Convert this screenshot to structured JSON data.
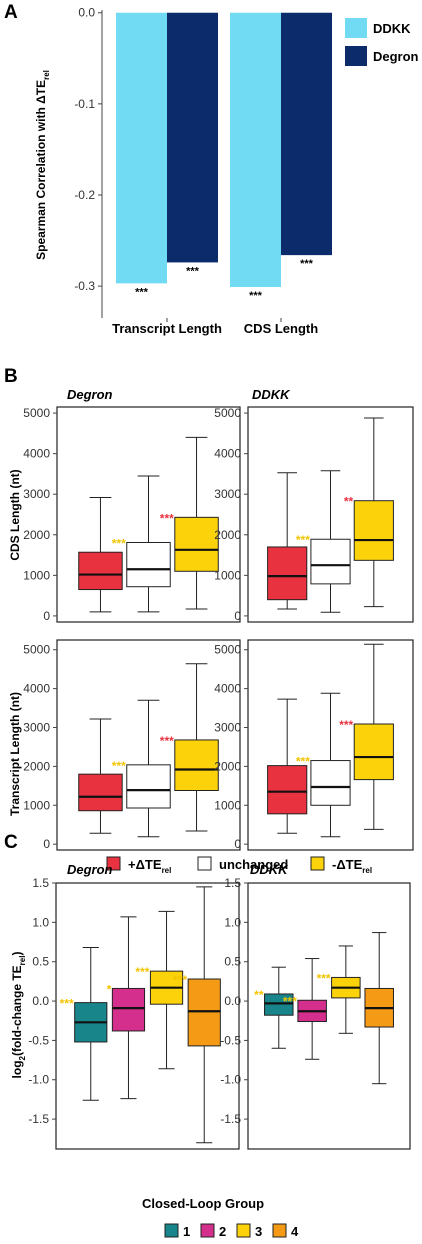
{
  "panels": {
    "a": "A",
    "b": "B",
    "c": "C"
  },
  "chart_data": [
    {
      "id": "A",
      "type": "bar",
      "ylabel": "Spearman Correlation with ΔTE",
      "ylabel_sub": "rel",
      "categories": [
        "Transcript Length",
        "CDS Length"
      ],
      "series": [
        {
          "name": "DDKK",
          "color": "#72dbf4",
          "values": [
            -0.297,
            -0.301
          ],
          "sig": [
            "***",
            "***"
          ]
        },
        {
          "name": "Degron",
          "color": "#0b2b6b",
          "values": [
            -0.274,
            -0.266
          ],
          "sig": [
            "***",
            "***"
          ]
        }
      ],
      "ylim": [
        -0.335,
        0.003
      ],
      "yticks": [
        "0.0",
        "-0.1",
        "-0.2",
        "-0.3"
      ],
      "ytick_values": [
        0,
        -0.1,
        -0.2,
        -0.3
      ],
      "legend_position": "top-right"
    },
    {
      "id": "B",
      "type": "boxplot",
      "rows": [
        {
          "ylabel": "CDS Length (nt)",
          "ylim": [
            -150,
            5150
          ],
          "yticks": [
            "0",
            "1000",
            "2000",
            "3000",
            "4000",
            "5000"
          ],
          "ytick_values": [
            0,
            1000,
            2000,
            3000,
            4000,
            5000
          ]
        },
        {
          "ylabel": "Transcript Length (nt)",
          "ylim": [
            -150,
            5250
          ],
          "yticks": [
            "0",
            "1000",
            "2000",
            "3000",
            "4000",
            "5000"
          ],
          "ytick_values": [
            0,
            1000,
            2000,
            3000,
            4000,
            5000
          ]
        }
      ],
      "columns": [
        "Degron",
        "DDKK"
      ],
      "categories": [
        "+ΔTE_rel",
        "unchanged",
        "-ΔTE_rel"
      ],
      "colors": [
        "#e8323f",
        "#ffffff",
        "#fcd20a"
      ],
      "boxes": [
        [
          [
            {
              "min": 100,
              "q1": 650,
              "median": 1020,
              "q3": 1570,
              "max": 2920,
              "sig": ""
            },
            {
              "min": 100,
              "q1": 720,
              "median": 1150,
              "q3": 1810,
              "max": 3450,
              "sig": "***",
              "sig_color": "#f2c400"
            },
            {
              "min": 170,
              "q1": 1100,
              "median": 1630,
              "q3": 2430,
              "max": 4400,
              "sig": "***",
              "sig_color": "#e8323f"
            }
          ],
          [
            {
              "min": 170,
              "q1": 400,
              "median": 980,
              "q3": 1700,
              "max": 3530,
              "sig": ""
            },
            {
              "min": 90,
              "q1": 790,
              "median": 1250,
              "q3": 1890,
              "max": 3580,
              "sig": "***",
              "sig_color": "#f2c400"
            },
            {
              "min": 230,
              "q1": 1370,
              "median": 1870,
              "q3": 2840,
              "max": 4880,
              "sig": "**",
              "sig_color": "#e8323f"
            }
          ]
        ],
        [
          [
            {
              "min": 280,
              "q1": 860,
              "median": 1220,
              "q3": 1800,
              "max": 3220,
              "sig": ""
            },
            {
              "min": 190,
              "q1": 930,
              "median": 1390,
              "q3": 2040,
              "max": 3700,
              "sig": "***",
              "sig_color": "#f2c400"
            },
            {
              "min": 340,
              "q1": 1380,
              "median": 1920,
              "q3": 2680,
              "max": 4640,
              "sig": "***",
              "sig_color": "#e8323f"
            }
          ],
          [
            {
              "min": 280,
              "q1": 780,
              "median": 1350,
              "q3": 2020,
              "max": 3730,
              "sig": ""
            },
            {
              "min": 190,
              "q1": 1000,
              "median": 1470,
              "q3": 2150,
              "max": 3880,
              "sig": "***",
              "sig_color": "#f2c400"
            },
            {
              "min": 380,
              "q1": 1660,
              "median": 2240,
              "q3": 3090,
              "max": 5140,
              "sig": "***",
              "sig_color": "#e8323f"
            }
          ]
        ]
      ],
      "legend": [
        "+ΔTE",
        "unchanged",
        "-ΔTE"
      ],
      "legend_sub": [
        "rel",
        "",
        "rel"
      ]
    },
    {
      "id": "C",
      "type": "boxplot",
      "ylabel": "log",
      "ylabel_sub": "2",
      "ylabel_rest": "(fold-change TE",
      "ylabel_sub2": "rel",
      "ylabel_end": ")",
      "columns": [
        "Degron",
        "DDKK"
      ],
      "ylim": [
        -1.88,
        1.5
      ],
      "yticks": [
        "1.5",
        "1.0",
        "0.5",
        "0.0",
        "-0.5",
        "-1.0",
        "-1.5"
      ],
      "ytick_values": [
        1.5,
        1.0,
        0.5,
        0.0,
        -0.5,
        -1.0,
        -1.5
      ],
      "categories": [
        "1",
        "2",
        "3",
        "4"
      ],
      "colors": [
        "#17858a",
        "#d42f8c",
        "#fcd20a",
        "#f49a14"
      ],
      "boxes": [
        [
          {
            "min": -1.26,
            "q1": -0.52,
            "median": -0.27,
            "q3": -0.02,
            "max": 0.68,
            "sig": "***"
          },
          {
            "min": -1.24,
            "q1": -0.38,
            "median": -0.09,
            "q3": 0.16,
            "max": 1.07,
            "sig": "*"
          },
          {
            "min": -0.86,
            "q1": -0.04,
            "median": 0.17,
            "q3": 0.38,
            "max": 1.14,
            "sig": "***"
          },
          {
            "min": -1.8,
            "q1": -0.57,
            "median": -0.13,
            "q3": 0.28,
            "max": 1.45,
            "sig": "***"
          }
        ],
        [
          {
            "min": -0.6,
            "q1": -0.18,
            "median": -0.03,
            "q3": 0.09,
            "max": 0.43,
            "sig": "**"
          },
          {
            "min": -0.74,
            "q1": -0.26,
            "median": -0.13,
            "q3": 0.01,
            "max": 0.54,
            "sig": "***"
          },
          {
            "min": -0.41,
            "q1": 0.04,
            "median": 0.17,
            "q3": 0.3,
            "max": 0.7,
            "sig": "***"
          },
          {
            "min": -1.05,
            "q1": -0.33,
            "median": -0.09,
            "q3": 0.16,
            "max": 0.87,
            "sig": ""
          }
        ]
      ],
      "sig_color": "#f2c400",
      "legend_title": "Closed-Loop Group",
      "legend": [
        "1",
        "2",
        "3",
        "4"
      ]
    }
  ]
}
